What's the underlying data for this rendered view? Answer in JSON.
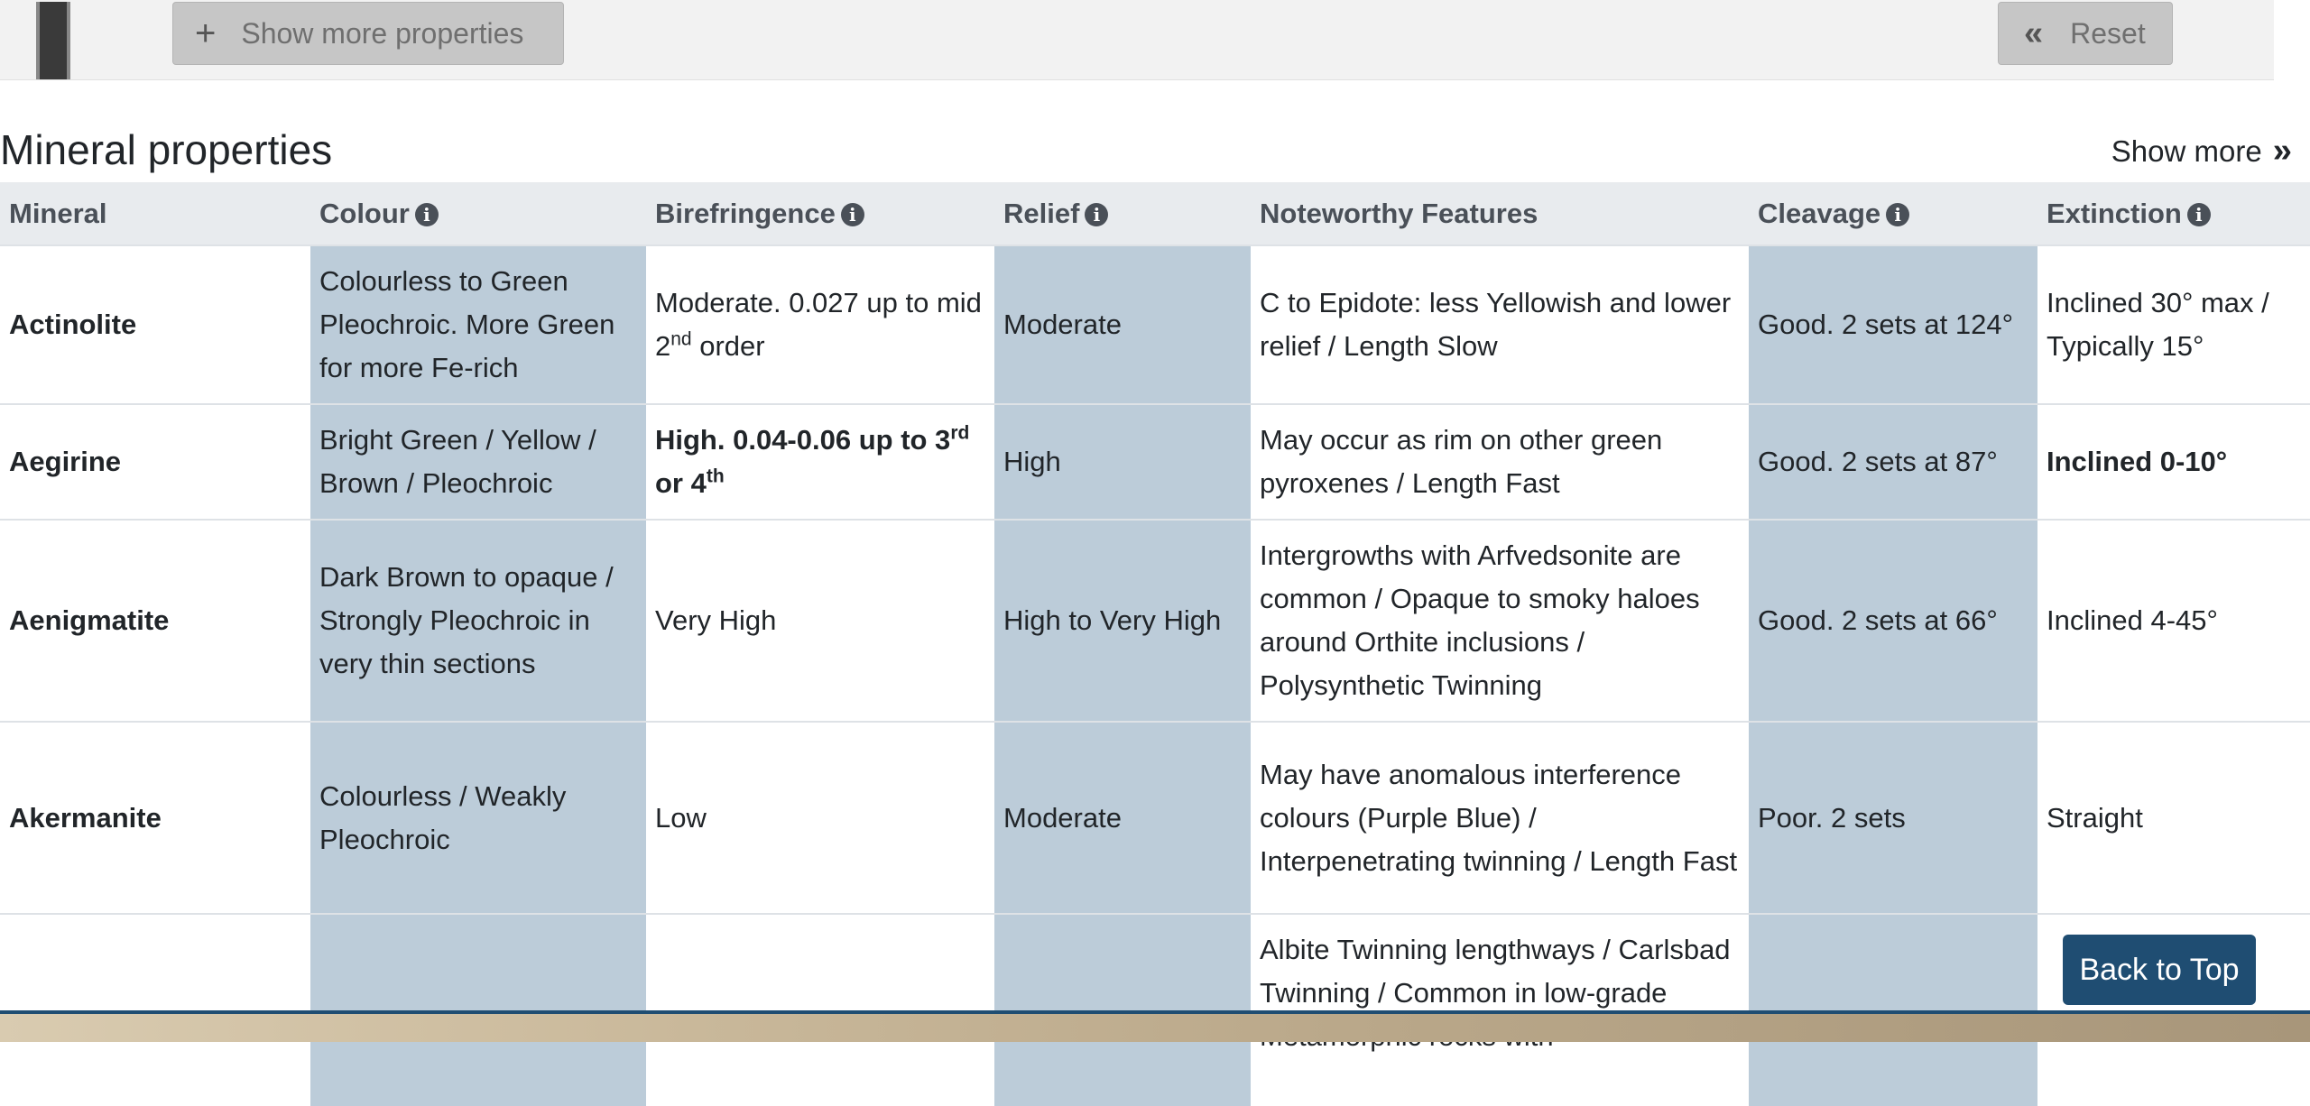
{
  "filter_bar": {
    "show_more_properties_label": "Show more properties",
    "reset_label": "Reset"
  },
  "section": {
    "title": "Mineral properties",
    "show_more_label": "Show more"
  },
  "table": {
    "headers": [
      "Mineral",
      "Colour",
      "Birefringence",
      "Relief",
      "Noteworthy Features",
      "Cleavage",
      "Extinction"
    ],
    "rows": [
      {
        "mineral": "Actinolite",
        "colour": "Colourless to Green Pleochroic. More Green for more Fe-rich",
        "birefringence_pre": "Moderate. 0.027 up to mid 2",
        "birefringence_sup": "nd",
        "birefringence_post": " order",
        "relief": "Moderate",
        "features": "C to Epidote: less Yellowish and lower relief / Length Slow",
        "cleavage": "Good. 2 sets at 124°",
        "extinction": "Inclined 30° max / Typically 15°"
      },
      {
        "mineral": "Aegirine",
        "colour": "Bright Green / Yellow / Brown / Pleochroic",
        "birefringence_pre": "High. 0.04-0.06 up to 3",
        "birefringence_sup": "rd",
        "birefringence_mid": " or 4",
        "birefringence_sup2": "th",
        "relief": "High",
        "features": "May occur as rim on other green pyroxenes / Length Fast",
        "cleavage": "Good. 2 sets at 87°",
        "extinction": "Inclined 0-10°"
      },
      {
        "mineral": "Aenigmatite",
        "colour": "Dark Brown to opaque / Strongly Pleochroic in very thin sections",
        "birefringence": "Very High",
        "relief": "High to Very High",
        "features": "Intergrowths with Arfvedsonite are common / Opaque to smoky haloes around Orthite inclusions / Polysynthetic Twinning",
        "cleavage": "Good. 2 sets at 66°",
        "extinction": "Inclined 4-45°"
      },
      {
        "mineral": "Akermanite",
        "colour": "Colourless / Weakly Pleochroic",
        "birefringence": "Low",
        "relief": "Moderate",
        "features": "May have anomalous interference colours (Purple Blue) / Interpenetrating twinning / Length Fast",
        "cleavage": "Poor. 2 sets",
        "extinction": "Straight"
      },
      {
        "features": "Albite Twinning lengthways / Carlsbad Twinning / Common in low-grade Metamorphic rocks with"
      }
    ]
  },
  "back_to_top_label": "Back to Top",
  "colors": {
    "shaded_column": "#bcccd9",
    "header_bg": "#e8ebee",
    "accent": "#1f4d72"
  }
}
